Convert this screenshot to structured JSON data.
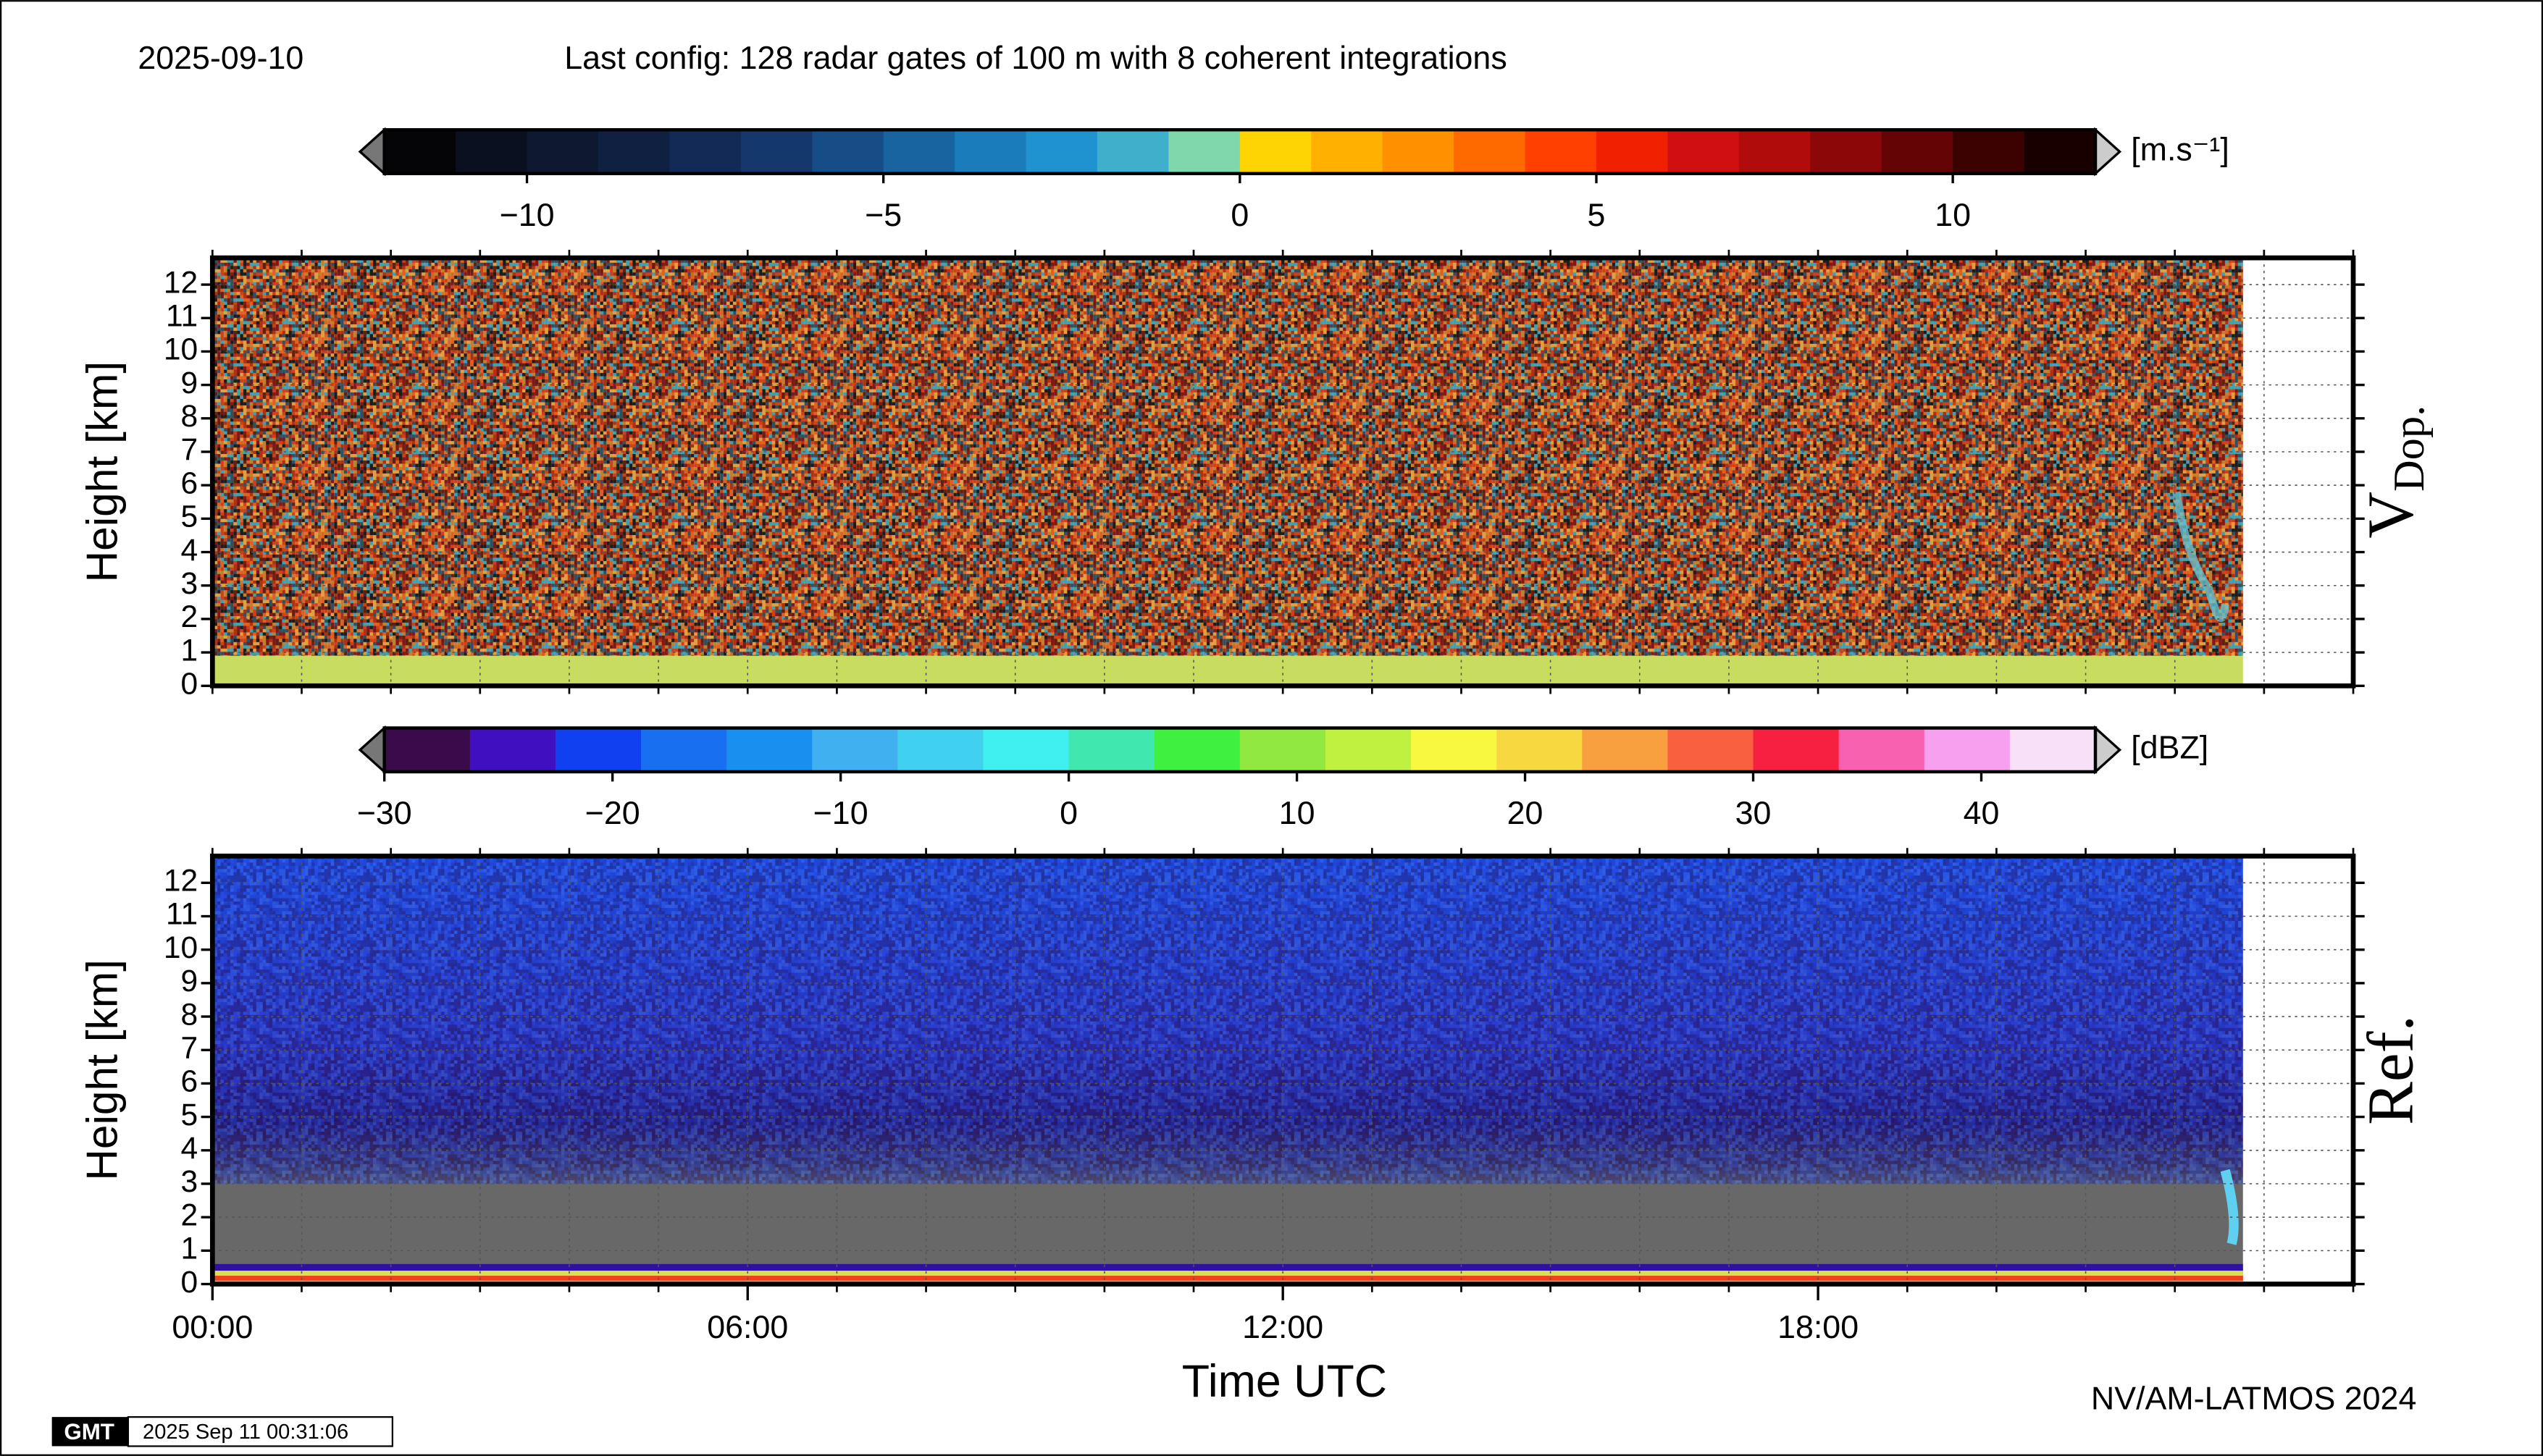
{
  "header": {
    "date": "2025-09-10",
    "config": "Last config: 128 radar gates of 100 m with 8 coherent integrations"
  },
  "chart_data": [
    {
      "type": "heatmap",
      "panel_label": "V",
      "panel_label_sub": "Dop.",
      "ylabel": "Height [km]",
      "ylim": [
        0,
        12.8
      ],
      "yticks": [
        0,
        1,
        2,
        3,
        4,
        5,
        6,
        7,
        8,
        9,
        10,
        11,
        12
      ],
      "xlim": [
        0,
        24
      ],
      "xminorticks": [
        0,
        1,
        2,
        3,
        4,
        5,
        6,
        7,
        8,
        9,
        10,
        11,
        12,
        13,
        14,
        15,
        16,
        17,
        18,
        19,
        20,
        21,
        22,
        23,
        24
      ],
      "grid": true,
      "colorbar": {
        "unit": "[m.s⁻¹]",
        "lim": [
          -12,
          12
        ],
        "ticks": [
          {
            "value": -10,
            "label": "−10"
          },
          {
            "value": -5,
            "label": "−5"
          },
          0,
          5,
          10
        ],
        "colors": [
          "#050508",
          "#0b1020",
          "#0e1830",
          "#102040",
          "#122a55",
          "#14386c",
          "#164d86",
          "#1864a0",
          "#1a7cba",
          "#1f93cf",
          "#3fb0cc",
          "#7fd8ac",
          "#ffd400",
          "#ffb000",
          "#ff9000",
          "#ff6a00",
          "#ff4000",
          "#f02000",
          "#d01010",
          "#b00c0c",
          "#8c0808",
          "#640404",
          "#3c0202",
          "#180000"
        ]
      }
    },
    {
      "type": "heatmap",
      "panel_label": "Ref.",
      "ylabel": "Height [km]",
      "xlabel": "Time UTC",
      "ylim": [
        0,
        12.8
      ],
      "yticks": [
        0,
        1,
        2,
        3,
        4,
        5,
        6,
        7,
        8,
        9,
        10,
        11,
        12
      ],
      "xlim": [
        0,
        24
      ],
      "xticks": [
        {
          "value": 0,
          "label": "00:00"
        },
        {
          "value": 6,
          "label": "06:00"
        },
        {
          "value": 12,
          "label": "12:00"
        },
        {
          "value": 18,
          "label": "18:00"
        }
      ],
      "xminorticks": [
        0,
        1,
        2,
        3,
        4,
        5,
        6,
        7,
        8,
        9,
        10,
        11,
        12,
        13,
        14,
        15,
        16,
        17,
        18,
        19,
        20,
        21,
        22,
        23,
        24
      ],
      "grid": true,
      "colorbar": {
        "unit": "[dBZ]",
        "lim": [
          -30,
          45
        ],
        "ticks": [
          {
            "value": -30,
            "label": "−30"
          },
          {
            "value": -20,
            "label": "−20"
          },
          {
            "value": -10,
            "label": "−10"
          },
          0,
          10,
          20,
          30,
          40
        ],
        "colors": [
          "#3a0a4a",
          "#4010c0",
          "#1040f0",
          "#1870f0",
          "#1890f0",
          "#40b0f0",
          "#40d0f0",
          "#40f0f0",
          "#40e8b0",
          "#40f040",
          "#90e840",
          "#c0f040",
          "#f8f840",
          "#f8d840",
          "#f8a040",
          "#f86040",
          "#f82040",
          "#f860b0",
          "#f8a0f0",
          "#f8e0f8"
        ]
      }
    }
  ],
  "footer": {
    "credit": "NV/AM-LATMOS 2024",
    "logo": "GMT",
    "timestamp": "2025 Sep 11 00:31:06"
  }
}
